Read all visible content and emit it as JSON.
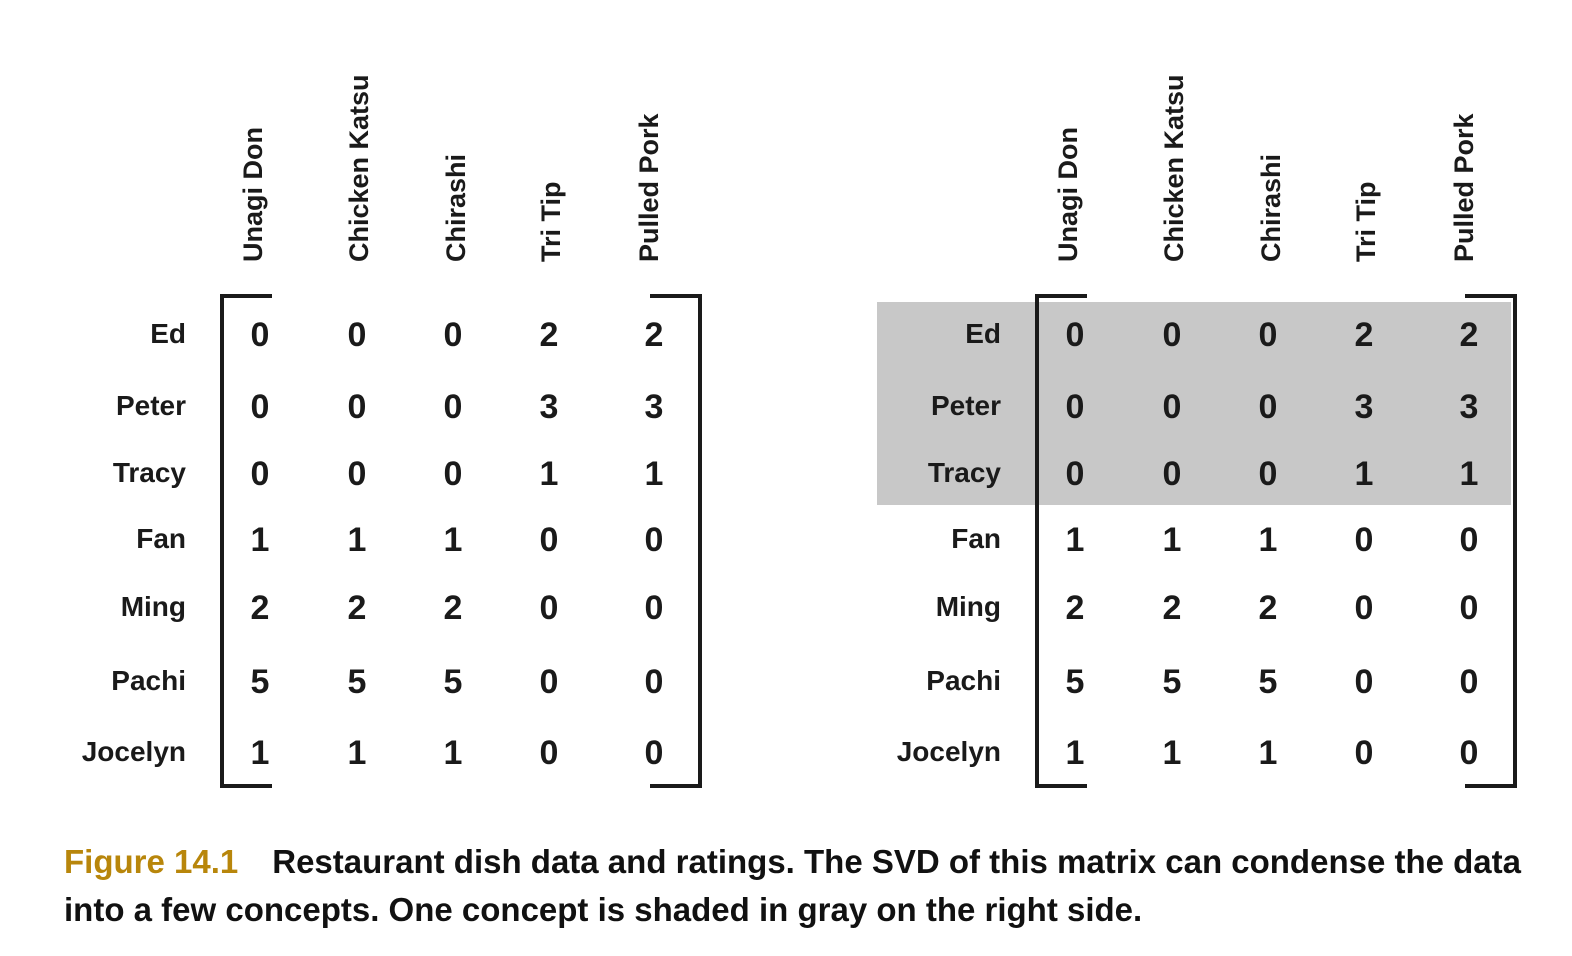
{
  "columns": [
    "Unagi Don",
    "Chicken Katsu",
    "Chirashi",
    "Tri Tip",
    "Pulled Pork"
  ],
  "rows": [
    {
      "name": "Ed",
      "values": [
        0,
        0,
        0,
        2,
        2
      ]
    },
    {
      "name": "Peter",
      "values": [
        0,
        0,
        0,
        3,
        3
      ]
    },
    {
      "name": "Tracy",
      "values": [
        0,
        0,
        0,
        1,
        1
      ]
    },
    {
      "name": "Fan",
      "values": [
        1,
        1,
        1,
        0,
        0
      ]
    },
    {
      "name": "Ming",
      "values": [
        2,
        2,
        2,
        0,
        0
      ]
    },
    {
      "name": "Pachi",
      "values": [
        5,
        5,
        5,
        0,
        0
      ]
    },
    {
      "name": "Jocelyn",
      "values": [
        1,
        1,
        1,
        0,
        0
      ]
    }
  ],
  "shaded_rows_right": [
    "Ed",
    "Peter",
    "Tracy"
  ],
  "shade_color": "#c8c8c8",
  "caption": {
    "label": "Figure 14.1",
    "text": "Restaurant dish data and ratings. The SVD of this matrix can condense the data into a few concepts. One concept is shaded in gray on the right side.",
    "label_color": "#b8860b"
  }
}
